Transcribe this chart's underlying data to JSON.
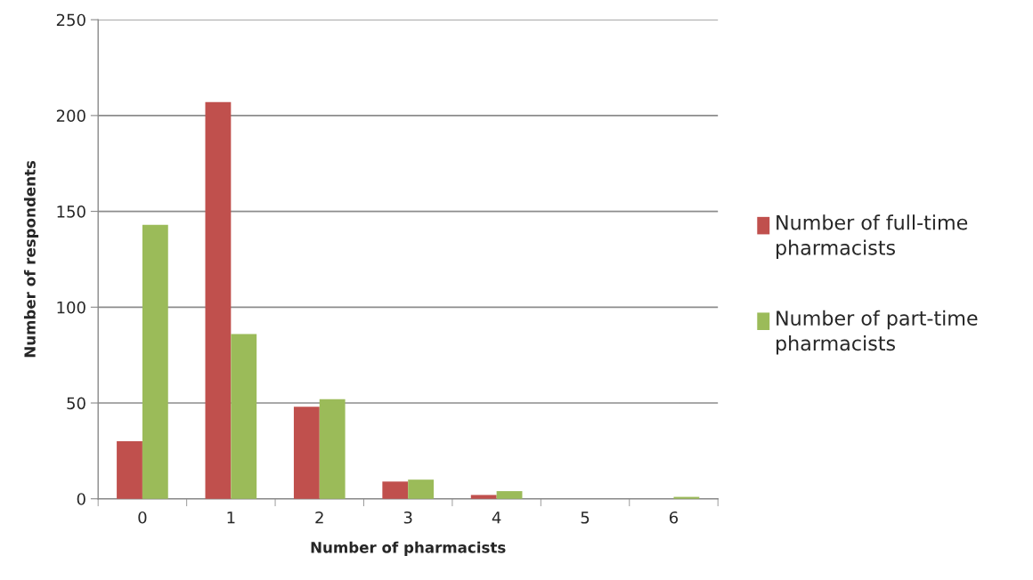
{
  "chart_data": {
    "type": "bar",
    "xlabel": "Number of pharmacists",
    "ylabel": "Number of respondents",
    "categories": [
      "0",
      "1",
      "2",
      "3",
      "4",
      "5",
      "6"
    ],
    "series": [
      {
        "name": "Number of full-time pharmacists",
        "color": "#c0504d",
        "values": [
          30,
          207,
          48,
          9,
          2,
          0,
          0
        ]
      },
      {
        "name": "Number of part-time pharmacists",
        "color": "#9bbb59",
        "values": [
          143,
          86,
          52,
          10,
          4,
          0,
          1
        ]
      }
    ],
    "ylim": [
      0,
      250
    ],
    "yticks": [
      0,
      50,
      100,
      150,
      200,
      250
    ],
    "grid": "y",
    "legend": "right"
  }
}
